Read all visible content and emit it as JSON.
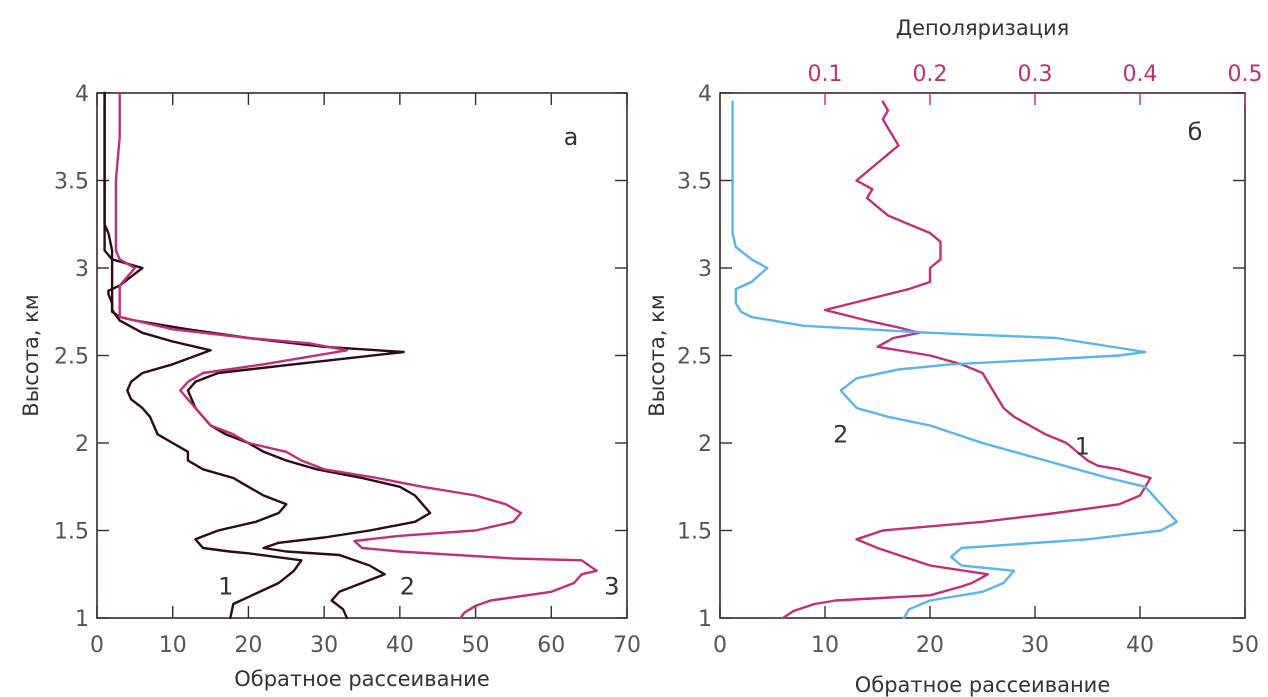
{
  "colors": {
    "axis": "#3a2a2a",
    "dark_curve": "#2e0a14",
    "magenta_curve": "#c0307a",
    "blue_curve": "#5bb5e8",
    "depol_axis": "#c0307a"
  },
  "chart_data": [
    {
      "type": "line",
      "panel": "a",
      "xlabel": "Обратное рассеивание",
      "ylabel": "Высота, км",
      "xlim": [
        0,
        70
      ],
      "ylim": [
        1,
        4
      ],
      "x_ticks": [
        "0",
        "10",
        "20",
        "30",
        "40",
        "50",
        "60",
        "70"
      ],
      "y_ticks": [
        "1",
        "1.5",
        "2",
        "2.5",
        "3",
        "3.5",
        "4"
      ],
      "grid": false,
      "series": [
        {
          "name": "1",
          "color": "dark",
          "points": [
            [
              17.6,
              1.0
            ],
            [
              18,
              1.08
            ],
            [
              21,
              1.14
            ],
            [
              24,
              1.2
            ],
            [
              26,
              1.27
            ],
            [
              27,
              1.33
            ],
            [
              20,
              1.37
            ],
            [
              17.5,
              1.38
            ],
            [
              14,
              1.4
            ],
            [
              13,
              1.45
            ],
            [
              16,
              1.5
            ],
            [
              21,
              1.55
            ],
            [
              24,
              1.6
            ],
            [
              25,
              1.65
            ],
            [
              22,
              1.7
            ],
            [
              20,
              1.75
            ],
            [
              18,
              1.8
            ],
            [
              14,
              1.85
            ],
            [
              12,
              1.9
            ],
            [
              12,
              1.95
            ],
            [
              10,
              2.0
            ],
            [
              8,
              2.05
            ],
            [
              7.5,
              2.1
            ],
            [
              7,
              2.15
            ],
            [
              6,
              2.2
            ],
            [
              4.5,
              2.25
            ],
            [
              4,
              2.3
            ],
            [
              4.5,
              2.35
            ],
            [
              6,
              2.4
            ],
            [
              10,
              2.45
            ],
            [
              15,
              2.53
            ],
            [
              10,
              2.58
            ],
            [
              6,
              2.63
            ],
            [
              3,
              2.7
            ],
            [
              2,
              2.76
            ],
            [
              2,
              2.8
            ],
            [
              2,
              2.87
            ],
            [
              2,
              2.95
            ],
            [
              2,
              3.0
            ],
            [
              2,
              3.1
            ],
            [
              1.5,
              3.2
            ],
            [
              1,
              3.25
            ],
            [
              1,
              3.5
            ],
            [
              1,
              3.75
            ],
            [
              1,
              4.0
            ]
          ],
          "label_xy": [
            17,
            1.18
          ]
        },
        {
          "name": "2",
          "color": "dark",
          "points": [
            [
              33,
              1.0
            ],
            [
              32.5,
              1.05
            ],
            [
              31,
              1.1
            ],
            [
              32,
              1.15
            ],
            [
              35,
              1.2
            ],
            [
              38,
              1.25
            ],
            [
              36,
              1.3
            ],
            [
              32,
              1.36
            ],
            [
              25,
              1.38
            ],
            [
              22,
              1.4
            ],
            [
              24,
              1.43
            ],
            [
              30,
              1.46
            ],
            [
              36,
              1.5
            ],
            [
              42,
              1.55
            ],
            [
              44,
              1.6
            ],
            [
              43,
              1.65
            ],
            [
              42,
              1.7
            ],
            [
              40,
              1.75
            ],
            [
              35,
              1.8
            ],
            [
              29,
              1.85
            ],
            [
              25,
              1.9
            ],
            [
              22,
              1.95
            ],
            [
              20,
              2.0
            ],
            [
              17,
              2.05
            ],
            [
              15,
              2.1
            ],
            [
              13,
              2.2
            ],
            [
              12,
              2.3
            ],
            [
              13,
              2.35
            ],
            [
              16,
              2.4
            ],
            [
              26,
              2.45
            ],
            [
              40.5,
              2.52
            ],
            [
              30,
              2.55
            ],
            [
              20,
              2.6
            ],
            [
              12,
              2.65
            ],
            [
              5,
              2.7
            ],
            [
              3,
              2.72
            ],
            [
              2,
              2.75
            ],
            [
              2,
              2.8
            ],
            [
              1.5,
              2.85
            ],
            [
              1.5,
              2.87
            ],
            [
              3,
              2.9
            ],
            [
              6,
              3.0
            ],
            [
              2,
              3.05
            ],
            [
              1,
              3.1
            ],
            [
              1,
              3.2
            ],
            [
              1,
              3.5
            ],
            [
              1,
              4.0
            ]
          ],
          "label_xy": [
            41,
            1.18
          ]
        },
        {
          "name": "3",
          "color": "magenta",
          "points": [
            [
              48,
              1.0
            ],
            [
              48.5,
              1.03
            ],
            [
              50,
              1.07
            ],
            [
              52,
              1.1
            ],
            [
              60,
              1.15
            ],
            [
              63,
              1.2
            ],
            [
              64,
              1.25
            ],
            [
              66,
              1.27
            ],
            [
              64,
              1.33
            ],
            [
              55,
              1.34
            ],
            [
              40,
              1.38
            ],
            [
              35,
              1.4
            ],
            [
              34,
              1.44
            ],
            [
              40,
              1.47
            ],
            [
              50,
              1.5
            ],
            [
              55,
              1.55
            ],
            [
              56,
              1.6
            ],
            [
              54,
              1.65
            ],
            [
              50,
              1.7
            ],
            [
              43,
              1.75
            ],
            [
              37,
              1.8
            ],
            [
              30,
              1.85
            ],
            [
              27,
              1.9
            ],
            [
              25,
              1.95
            ],
            [
              20,
              2.0
            ],
            [
              18,
              2.05
            ],
            [
              15,
              2.1
            ],
            [
              13,
              2.2
            ],
            [
              11,
              2.3
            ],
            [
              12,
              2.35
            ],
            [
              14,
              2.4
            ],
            [
              22,
              2.45
            ],
            [
              33,
              2.53
            ],
            [
              28,
              2.57
            ],
            [
              20,
              2.6
            ],
            [
              10,
              2.65
            ],
            [
              5,
              2.7
            ],
            [
              3,
              2.72
            ],
            [
              3,
              2.75
            ],
            [
              3,
              2.8
            ],
            [
              3,
              2.85
            ],
            [
              3,
              2.9
            ],
            [
              5,
              3.0
            ],
            [
              3,
              3.05
            ],
            [
              2.5,
              3.1
            ],
            [
              2.5,
              3.2
            ],
            [
              2.5,
              3.3
            ],
            [
              2.5,
              3.5
            ],
            [
              3,
              3.75
            ],
            [
              3,
              4.0
            ]
          ],
          "label_xy": [
            68,
            1.18
          ]
        }
      ],
      "curve_labels": [
        "1",
        "2",
        "3"
      ],
      "panel_letter": "а"
    },
    {
      "type": "line",
      "panel": "б",
      "xlabel": "Обратное рассеивание",
      "ylabel": "Высота, км",
      "x2label": "Деполяризация",
      "xlim": [
        0,
        50
      ],
      "ylim": [
        1,
        4
      ],
      "x2lim": [
        0,
        0.5
      ],
      "x_ticks": [
        "0",
        "10",
        "20",
        "30",
        "40",
        "50"
      ],
      "x2_ticks": [
        "0.1",
        "0.2",
        "0.3",
        "0.4",
        "0.5"
      ],
      "y_ticks": [
        "1",
        "1.5",
        "2",
        "2.5",
        "3",
        "3.5",
        "4"
      ],
      "grid": false,
      "series": [
        {
          "name": "1",
          "axis": "top",
          "color": "magenta",
          "points": [
            [
              0.06,
              1.0
            ],
            [
              0.07,
              1.04
            ],
            [
              0.09,
              1.08
            ],
            [
              0.11,
              1.1
            ],
            [
              0.2,
              1.13
            ],
            [
              0.23,
              1.18
            ],
            [
              0.24,
              1.2
            ],
            [
              0.255,
              1.25
            ],
            [
              0.2,
              1.3
            ],
            [
              0.15,
              1.4
            ],
            [
              0.13,
              1.45
            ],
            [
              0.155,
              1.5
            ],
            [
              0.25,
              1.55
            ],
            [
              0.32,
              1.6
            ],
            [
              0.38,
              1.65
            ],
            [
              0.4,
              1.7
            ],
            [
              0.41,
              1.8
            ],
            [
              0.38,
              1.85
            ],
            [
              0.36,
              1.87
            ],
            [
              0.35,
              1.9
            ],
            [
              0.33,
              2.0
            ],
            [
              0.31,
              2.05
            ],
            [
              0.28,
              2.15
            ],
            [
              0.27,
              2.2
            ],
            [
              0.26,
              2.3
            ],
            [
              0.25,
              2.4
            ],
            [
              0.23,
              2.45
            ],
            [
              0.2,
              2.5
            ],
            [
              0.15,
              2.55
            ],
            [
              0.165,
              2.6
            ],
            [
              0.19,
              2.63
            ],
            [
              0.17,
              2.66
            ],
            [
              0.14,
              2.7
            ],
            [
              0.1,
              2.76
            ],
            [
              0.14,
              2.82
            ],
            [
              0.18,
              2.88
            ],
            [
              0.2,
              2.92
            ],
            [
              0.2,
              3.0
            ],
            [
              0.21,
              3.05
            ],
            [
              0.21,
              3.15
            ],
            [
              0.2,
              3.2
            ],
            [
              0.18,
              3.25
            ],
            [
              0.16,
              3.3
            ],
            [
              0.15,
              3.35
            ],
            [
              0.14,
              3.4
            ],
            [
              0.145,
              3.45
            ],
            [
              0.13,
              3.5
            ],
            [
              0.14,
              3.55
            ],
            [
              0.15,
              3.6
            ],
            [
              0.17,
              3.7
            ],
            [
              0.16,
              3.8
            ],
            [
              0.155,
              3.85
            ],
            [
              0.16,
              3.9
            ],
            [
              0.155,
              3.95
            ]
          ],
          "label_xy": [
            34.5,
            1.98
          ]
        },
        {
          "name": "2",
          "axis": "bottom",
          "color": "blue",
          "points": [
            [
              17.5,
              1.0
            ],
            [
              18,
              1.05
            ],
            [
              20,
              1.1
            ],
            [
              25,
              1.15
            ],
            [
              27,
              1.2
            ],
            [
              28,
              1.27
            ],
            [
              23,
              1.3
            ],
            [
              22,
              1.35
            ],
            [
              23,
              1.4
            ],
            [
              35,
              1.45
            ],
            [
              42,
              1.5
            ],
            [
              43.5,
              1.55
            ],
            [
              42,
              1.65
            ],
            [
              40.5,
              1.75
            ],
            [
              37,
              1.8
            ],
            [
              34,
              1.85
            ],
            [
              31,
              1.9
            ],
            [
              28,
              1.95
            ],
            [
              25,
              2.0
            ],
            [
              20,
              2.1
            ],
            [
              16,
              2.15
            ],
            [
              13,
              2.2
            ],
            [
              11.5,
              2.3
            ],
            [
              13,
              2.37
            ],
            [
              17,
              2.42
            ],
            [
              22,
              2.45
            ],
            [
              32,
              2.48
            ],
            [
              38,
              2.5
            ],
            [
              40.5,
              2.52
            ],
            [
              32,
              2.6
            ],
            [
              20,
              2.63
            ],
            [
              8,
              2.67
            ],
            [
              3,
              2.72
            ],
            [
              2,
              2.75
            ],
            [
              1.5,
              2.8
            ],
            [
              1.5,
              2.88
            ],
            [
              3,
              2.92
            ],
            [
              4.5,
              3.0
            ],
            [
              3,
              3.05
            ],
            [
              1.5,
              3.12
            ],
            [
              1.2,
              3.2
            ],
            [
              1.2,
              3.5
            ],
            [
              1.2,
              3.75
            ],
            [
              1.2,
              3.95
            ]
          ],
          "label_xy": [
            11.5,
            2.05
          ]
        }
      ],
      "curve_labels": [
        "1",
        "2"
      ],
      "panel_letter": "б"
    }
  ]
}
